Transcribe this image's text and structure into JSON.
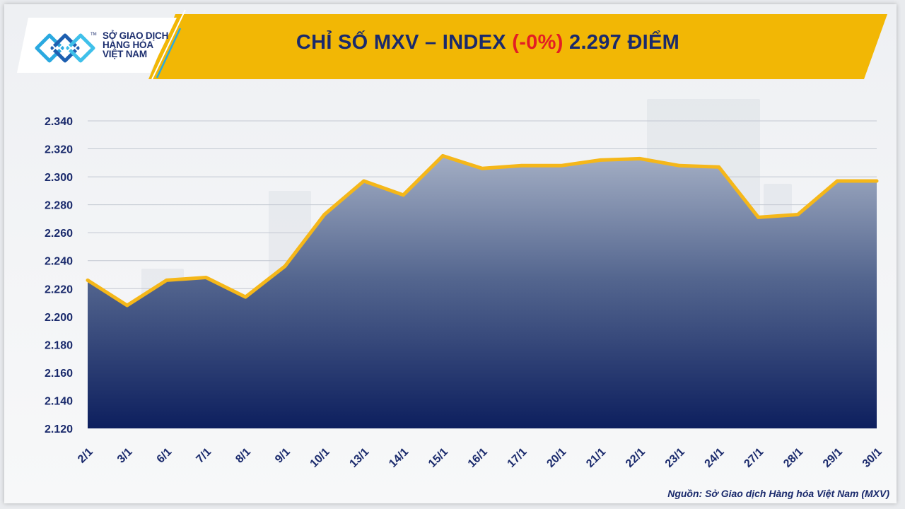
{
  "header": {
    "logo_lines": [
      "SỞ GIAO DỊCH",
      "HÀNG HÓA",
      "VIỆT NAM"
    ],
    "logo_tm": "TM",
    "title_prefix": "CHỈ SỐ MXV – INDEX",
    "title_change": "(-0%)",
    "title_value": "2.297 ĐIỂM"
  },
  "colors": {
    "banner": "#f2b705",
    "title_text": "#1a2a6c",
    "change_text": "#e31e24",
    "line": "#f5b719",
    "area_top": "#a3aec4",
    "area_bottom": "#0d1f5e"
  },
  "source": "Nguồn: Sở Giao dịch Hàng hóa Việt Nam (MXV)",
  "chart_data": {
    "type": "area",
    "categories": [
      "2/1",
      "3/1",
      "6/1",
      "7/1",
      "8/1",
      "9/1",
      "10/1",
      "13/1",
      "14/1",
      "15/1",
      "16/1",
      "17/1",
      "20/1",
      "21/1",
      "22/1",
      "23/1",
      "24/1",
      "27/1",
      "28/1",
      "29/1",
      "30/1"
    ],
    "values": [
      2226,
      2208,
      2226,
      2228,
      2214,
      2236,
      2273,
      2297,
      2287,
      2315,
      2306,
      2308,
      2308,
      2312,
      2313,
      2308,
      2307,
      2271,
      2273,
      2297,
      2297
    ],
    "ylim": [
      2120,
      2340
    ],
    "yticks": [
      2120,
      2140,
      2160,
      2180,
      2200,
      2220,
      2240,
      2260,
      2280,
      2300,
      2320,
      2340
    ],
    "ytick_labels": [
      "2.120",
      "2.140",
      "2.160",
      "2.180",
      "2.200",
      "2.220",
      "2.240",
      "2.260",
      "2.280",
      "2.300",
      "2.320",
      "2.340"
    ],
    "grid": true,
    "legend": "none"
  }
}
